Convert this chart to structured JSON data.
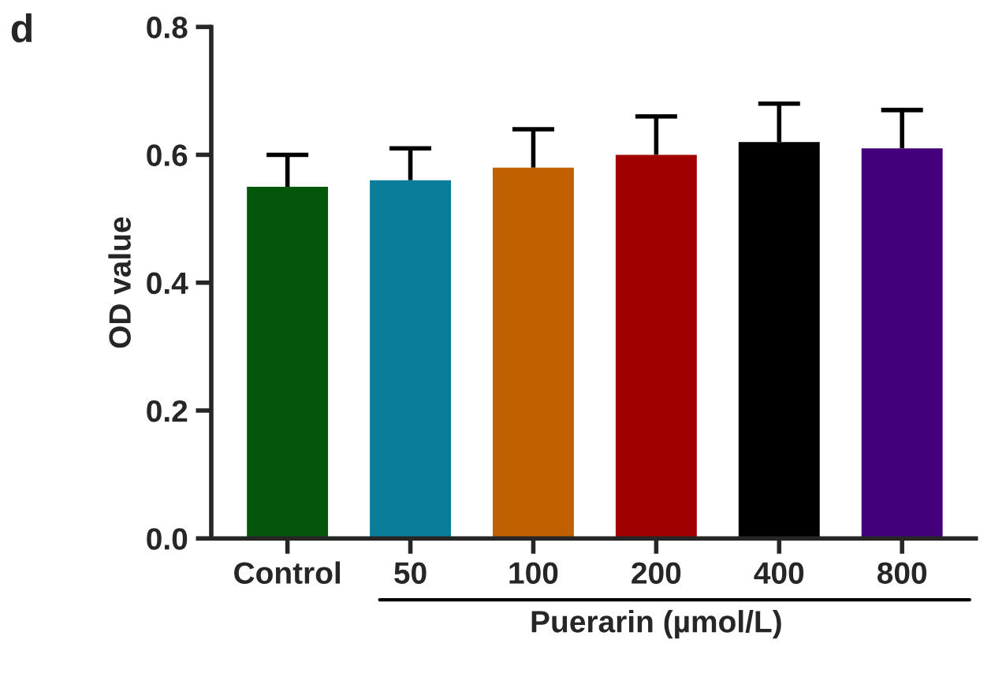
{
  "chart_data": {
    "type": "bar",
    "categories": [
      "Control",
      "50",
      "100",
      "200",
      "400",
      "800"
    ],
    "values": [
      0.55,
      0.56,
      0.58,
      0.6,
      0.62,
      0.61
    ],
    "errors": [
      [
        0.55,
        0.6
      ],
      [
        0.56,
        0.61
      ],
      [
        0.58,
        0.64
      ],
      [
        0.6,
        0.66
      ],
      [
        0.62,
        0.68
      ],
      [
        0.61,
        0.67
      ]
    ],
    "colors": [
      "#04560a",
      "#0a7d9a",
      "#c06000",
      "#a00000",
      "#000000",
      "#44007a"
    ],
    "ylabel": "OD value",
    "xlabel": "Puerarin (µmol/L)",
    "ylim": [
      0,
      0.8
    ],
    "yticks": [
      {
        "value": 0,
        "label": "0.0"
      },
      0.2,
      0.4,
      0.6,
      0.8
    ],
    "annotations": [
      "d"
    ],
    "grid": false,
    "legend": false
  }
}
